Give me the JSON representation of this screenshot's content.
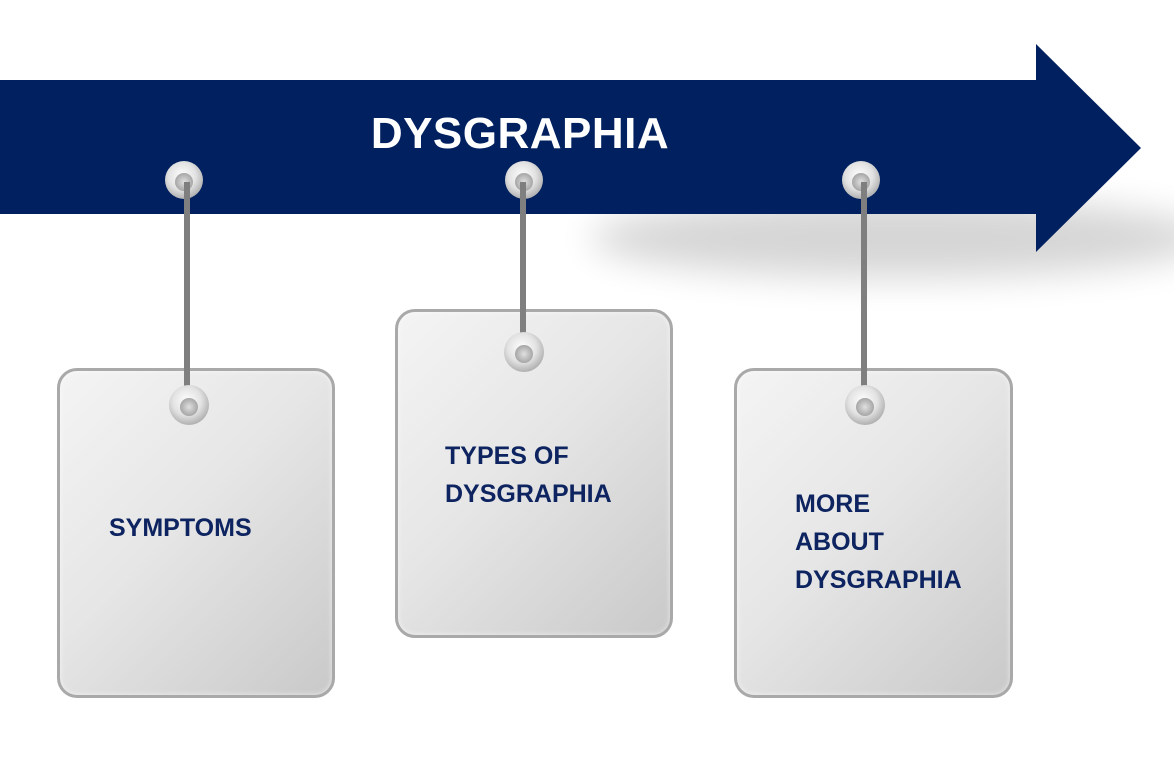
{
  "title": "DYSGRAPHIA",
  "tags": [
    {
      "lines": [
        "SYMPTOMS"
      ]
    },
    {
      "lines": [
        "TYPES OF",
        "DYSGRAPHIA"
      ]
    },
    {
      "lines": [
        "MORE",
        "ABOUT",
        "DYSGRAPHIA"
      ]
    }
  ],
  "colors": {
    "arrow": "#00205f",
    "label_text": "#0d2460",
    "title_text": "#ffffff",
    "tag_border": "#a9a9a9",
    "string": "#7f7f7f"
  }
}
